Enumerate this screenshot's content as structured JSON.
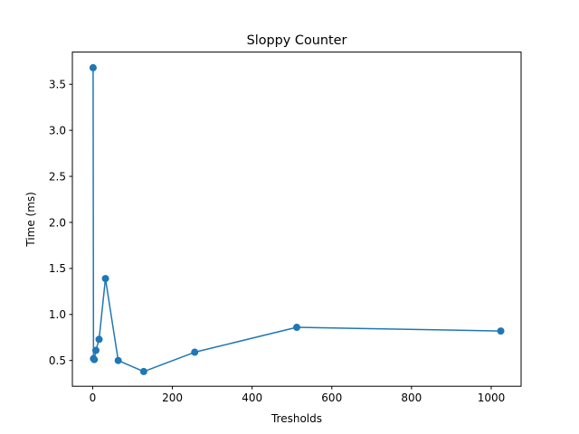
{
  "chart_data": {
    "type": "line",
    "title": "Sloppy Counter",
    "xlabel": "Tresholds",
    "ylabel": "Time (ms)",
    "xlim": [
      -51,
      1075
    ],
    "ylim": [
      0.22,
      3.85
    ],
    "xticks": [
      0,
      200,
      400,
      600,
      800,
      1000
    ],
    "yticks": [
      0.5,
      1.0,
      1.5,
      2.0,
      2.5,
      3.0,
      3.5
    ],
    "xtick_labels": [
      "0",
      "200",
      "400",
      "600",
      "800",
      "1000"
    ],
    "ytick_labels": [
      "0.5",
      "1.0",
      "1.5",
      "2.0",
      "2.5",
      "3.0",
      "3.5"
    ],
    "grid": false,
    "legend": "none",
    "series": [
      {
        "color": "#1f77b4",
        "marker": "circle",
        "x": [
          1,
          2,
          4,
          8,
          16,
          32,
          64,
          128,
          256,
          512,
          1024
        ],
        "y": [
          3.68,
          0.52,
          0.51,
          0.61,
          0.73,
          1.39,
          0.5,
          0.38,
          0.59,
          0.86,
          0.82
        ]
      }
    ]
  }
}
